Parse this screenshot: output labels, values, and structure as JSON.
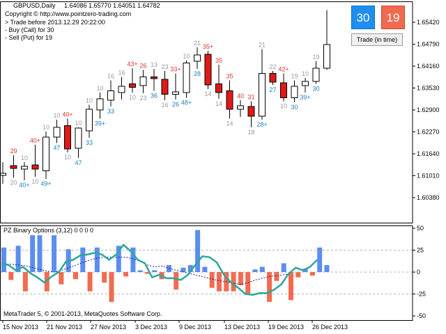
{
  "chart_info": {
    "symbol": "GBPUSD,Daily",
    "ohlc": "1.64086 1.65770 1.64051 1.64782",
    "copyright": "Copyright © http://www.pointzero-trading.com",
    "lines": [
      "> Trade before 2013.12.29 20:22:00",
      "- Buy (Call) for 30",
      "- Sell (Put) for 19"
    ]
  },
  "buttons": {
    "call": "30",
    "put": "19",
    "trade": "Trade (in time)"
  },
  "colors": {
    "bull": "#ffffff",
    "bear": "#e01818",
    "call_label": "#1a7fc4",
    "put_label": "#e0322c",
    "neutral_label": "#9a9a9a",
    "hist_up": "#5b8def",
    "hist_down": "#f26b50",
    "osc": "#2aa89a",
    "signal": "#1a1aa0",
    "btn_call": "#1e8ff0",
    "btn_put": "#f06a50"
  },
  "price_axis": {
    "ticks": [
      "1.65420",
      "1.64790",
      "1.64160",
      "1.63530",
      "1.62900",
      "1.62270",
      "1.61640",
      "1.61010",
      "1.60380"
    ]
  },
  "indicator": {
    "title": "PZ Binary Options (3,12) 0 0 0 0",
    "ticks": [
      "50",
      "25",
      "0",
      "-25",
      "-50"
    ]
  },
  "footer": "MetaTrader 5, © 2001-2013, MetaQuotes Software Corp.",
  "time_axis": [
    "15 Nov 2013",
    "21 Nov 2013",
    "27 Nov 2013",
    "3 Dec 2013",
    "9 Dec 2013",
    "13 Dec 2013",
    "19 Dec 2013",
    "26 Dec 2013"
  ],
  "chart_data": {
    "type": "candlestick",
    "candles": [
      {
        "o": 1.6102,
        "h": 1.614,
        "l": 1.6078,
        "c": 1.6108,
        "top": "",
        "bot": ""
      },
      {
        "o": 1.613,
        "h": 1.616,
        "l": 1.6095,
        "c": 1.6122,
        "top": "29",
        "bot": "20"
      },
      {
        "o": 1.612,
        "h": 1.614,
        "l": 1.6088,
        "c": 1.6128,
        "top": "10",
        "bot": "40+"
      },
      {
        "o": 1.6132,
        "h": 1.619,
        "l": 1.6098,
        "c": 1.612,
        "top": "40+",
        "bot": "10"
      },
      {
        "o": 1.6115,
        "h": 1.6228,
        "l": 1.6092,
        "c": 1.6212,
        "top": "10",
        "bot": "49+"
      },
      {
        "o": 1.6212,
        "h": 1.6262,
        "l": 1.6195,
        "c": 1.624,
        "top": "10",
        "bot": "47"
      },
      {
        "o": 1.6245,
        "h": 1.6265,
        "l": 1.6168,
        "c": 1.6178,
        "top": "40+",
        "bot": "10"
      },
      {
        "o": 1.618,
        "h": 1.624,
        "l": 1.6152,
        "c": 1.6238,
        "top": "10",
        "bot": "47"
      },
      {
        "o": 1.623,
        "h": 1.6305,
        "l": 1.621,
        "c": 1.6292,
        "top": "10",
        "bot": "33"
      },
      {
        "o": 1.629,
        "h": 1.634,
        "l": 1.6265,
        "c": 1.6322,
        "top": "10",
        "bot": "39+"
      },
      {
        "o": 1.6318,
        "h": 1.6375,
        "l": 1.63,
        "c": 1.6345,
        "top": "16",
        "bot": "33"
      },
      {
        "o": 1.634,
        "h": 1.6385,
        "l": 1.632,
        "c": 1.6358,
        "top": "16",
        "bot": ""
      },
      {
        "o": 1.6365,
        "h": 1.641,
        "l": 1.634,
        "c": 1.6355,
        "top": "43+",
        "bot": "10"
      },
      {
        "o": 1.636,
        "h": 1.6405,
        "l": 1.6338,
        "c": 1.6385,
        "top": "26",
        "bot": "23"
      },
      {
        "o": 1.6385,
        "h": 1.6408,
        "l": 1.6345,
        "c": 1.638,
        "top": "13",
        "bot": "36"
      },
      {
        "o": 1.6378,
        "h": 1.6402,
        "l": 1.6318,
        "c": 1.6335,
        "top": "23",
        "bot": "16"
      },
      {
        "o": 1.6335,
        "h": 1.6395,
        "l": 1.632,
        "c": 1.6342,
        "top": "33+",
        "bot": "26"
      },
      {
        "o": 1.634,
        "h": 1.6432,
        "l": 1.6325,
        "c": 1.6425,
        "top": "10",
        "bot": "48+"
      },
      {
        "o": 1.643,
        "h": 1.647,
        "l": 1.6408,
        "c": 1.6448,
        "top": "21",
        "bot": "28"
      },
      {
        "o": 1.645,
        "h": 1.646,
        "l": 1.635,
        "c": 1.6362,
        "top": "35+",
        "bot": "14"
      },
      {
        "o": 1.6365,
        "h": 1.642,
        "l": 1.6322,
        "c": 1.634,
        "top": "35",
        "bot": "14"
      },
      {
        "o": 1.6345,
        "h": 1.6375,
        "l": 1.6265,
        "c": 1.6292,
        "top": "35",
        "bot": "14"
      },
      {
        "o": 1.6292,
        "h": 1.6318,
        "l": 1.627,
        "c": 1.6302,
        "top": "40",
        "bot": ""
      },
      {
        "o": 1.63,
        "h": 1.6315,
        "l": 1.624,
        "c": 1.6272,
        "top": "31",
        "bot": "18"
      },
      {
        "o": 1.6272,
        "h": 1.6465,
        "l": 1.6262,
        "c": 1.6395,
        "top": "21",
        "bot": "28+"
      },
      {
        "o": 1.6395,
        "h": 1.6402,
        "l": 1.6362,
        "c": 1.637,
        "top": "22",
        "bot": "27"
      },
      {
        "o": 1.6368,
        "h": 1.6395,
        "l": 1.6315,
        "c": 1.6325,
        "top": "42+",
        "bot": "10"
      },
      {
        "o": 1.6325,
        "h": 1.6375,
        "l": 1.6312,
        "c": 1.6358,
        "top": "19",
        "bot": "30"
      },
      {
        "o": 1.636,
        "h": 1.6382,
        "l": 1.634,
        "c": 1.6372,
        "top": "10",
        "bot": "39+"
      },
      {
        "o": 1.6372,
        "h": 1.643,
        "l": 1.6365,
        "c": 1.641,
        "top": "19",
        "bot": "30"
      },
      {
        "o": 1.641,
        "h": 1.6577,
        "l": 1.6405,
        "c": 1.6478,
        "top": "",
        "bot": ""
      }
    ],
    "histogram": [
      28,
      -9,
      30,
      -22,
      42,
      42,
      -22,
      42,
      -14,
      26,
      -8,
      28,
      -22,
      28,
      -12,
      -34,
      30,
      -5,
      28,
      2,
      -2,
      2,
      -8,
      8,
      -20,
      5,
      8,
      48,
      6,
      -18,
      -22,
      -22,
      -22,
      -15,
      -25,
      3,
      6,
      -34,
      -10,
      10,
      -32,
      -6,
      4,
      -4,
      28,
      8
    ],
    "oscillator": [
      10,
      8,
      2,
      6,
      -1,
      -6,
      -12,
      -5,
      0,
      12,
      14,
      19,
      20,
      22,
      20,
      14,
      20,
      31,
      24,
      14,
      10,
      -6,
      -3,
      -7,
      -7,
      -9,
      -3,
      8,
      18,
      17,
      11,
      -3,
      -12,
      -18,
      -25,
      -26,
      -24,
      -24,
      -20,
      -14,
      -2,
      5,
      2,
      6,
      14
    ],
    "signal": [
      9,
      9,
      8,
      7,
      5,
      3,
      1,
      0,
      2,
      5,
      8,
      11,
      14,
      16,
      17,
      17,
      17,
      17,
      15,
      12,
      8,
      6,
      7,
      4,
      2,
      0,
      -2,
      -4,
      -6,
      -8,
      -10,
      -11,
      -13,
      -14,
      -12,
      -9,
      -7,
      -5,
      -4,
      -3,
      -2
    ]
  }
}
